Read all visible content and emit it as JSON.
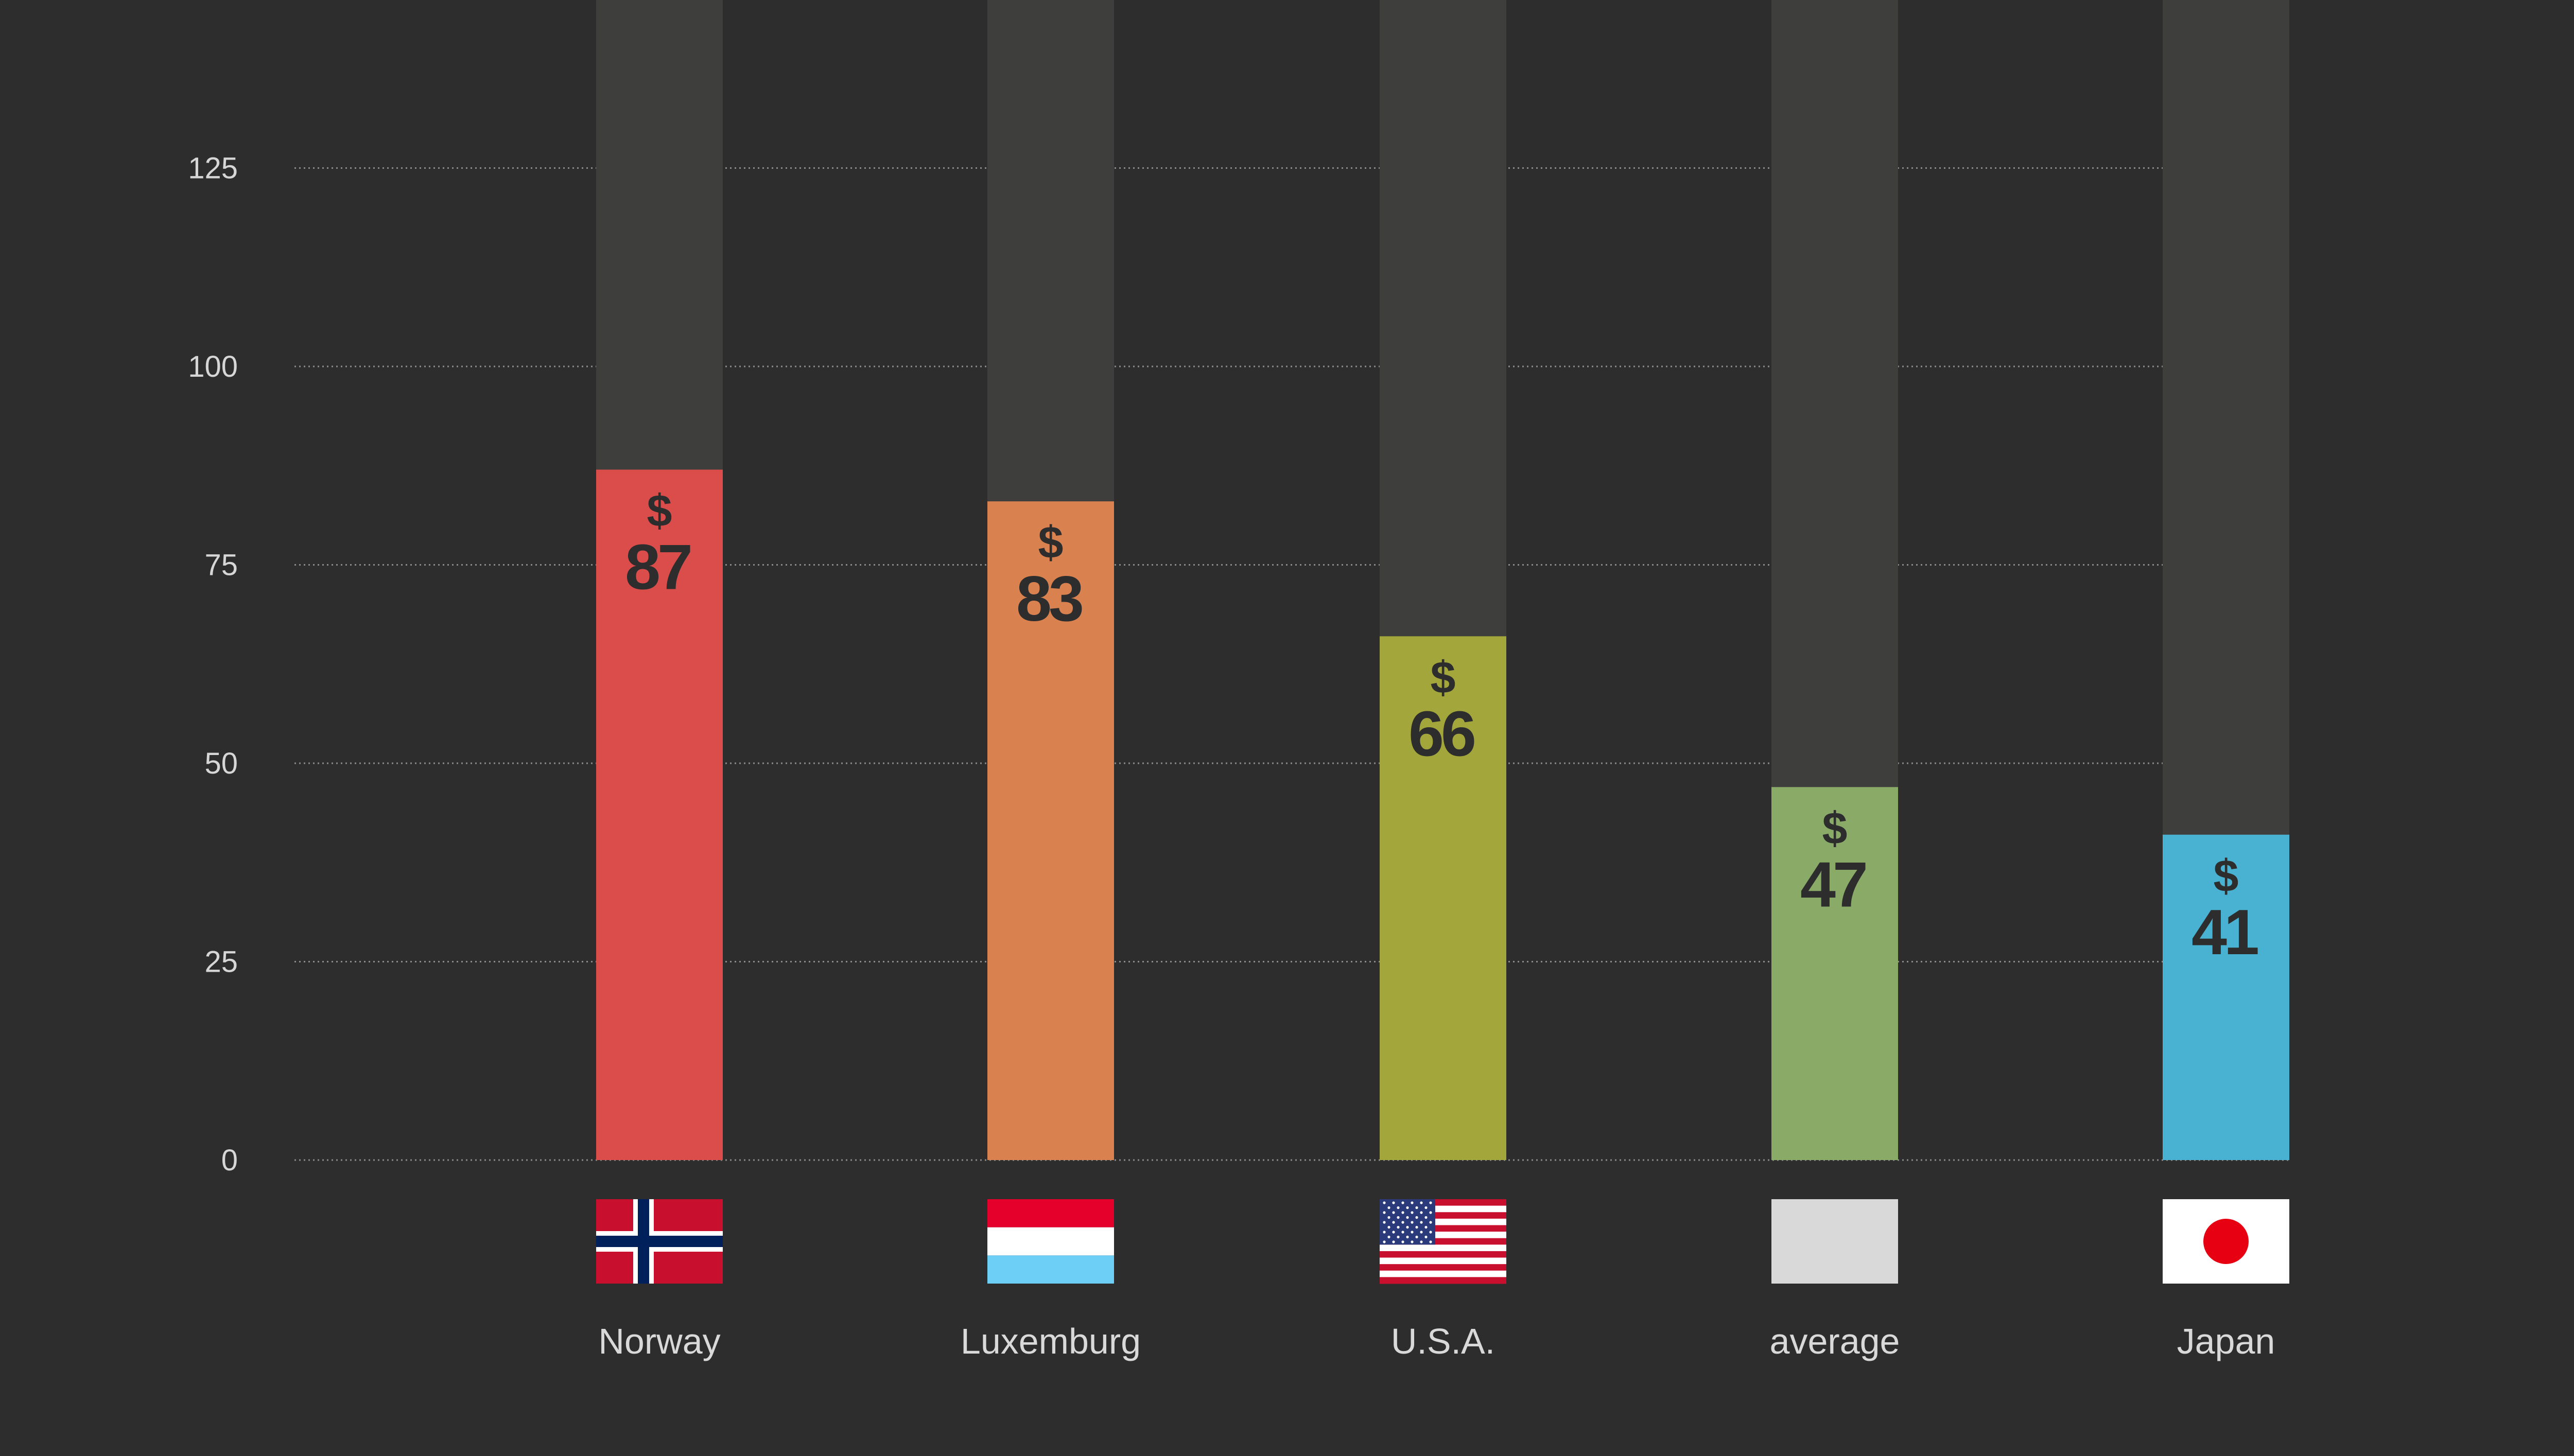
{
  "chart_data": {
    "type": "bar",
    "categories": [
      "Norway",
      "Luxemburg",
      "U.S.A.",
      "average",
      "Japan"
    ],
    "values": [
      87,
      83,
      66,
      47,
      41
    ],
    "value_prefix": "$",
    "colors": [
      "#db4d4b",
      "#d98250",
      "#a3a63a",
      "#89ab67",
      "#49b2d3"
    ],
    "flags": [
      "norway-flag-icon",
      "luxembourg-flag-icon",
      "usa-flag-icon",
      "blank-flag-icon",
      "japan-flag-icon"
    ],
    "yticks": [
      0,
      25,
      50,
      75,
      100,
      125
    ],
    "ylim": [
      0,
      146
    ],
    "grid": true,
    "title": "",
    "xlabel": "",
    "ylabel": ""
  }
}
